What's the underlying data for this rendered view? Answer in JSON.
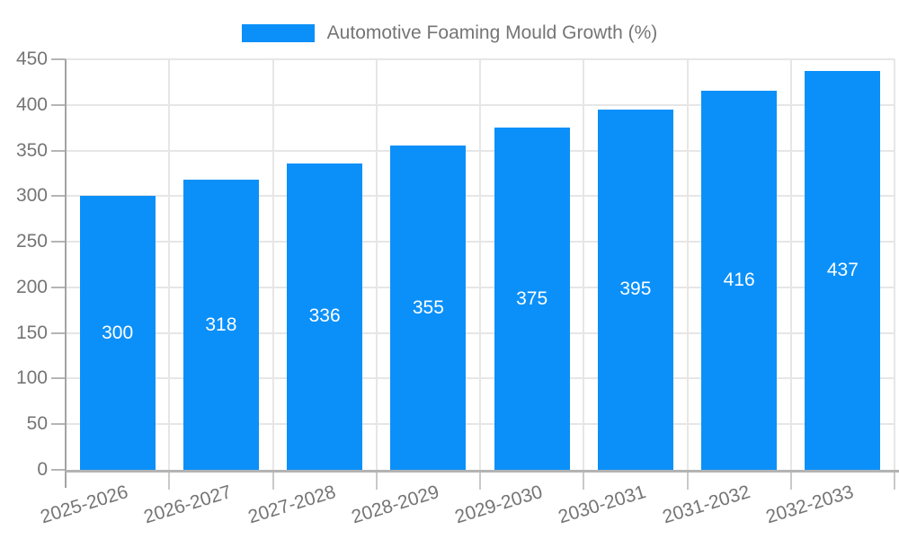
{
  "legend": {
    "label": "Automotive Foaming Mould Growth (%)"
  },
  "colors": {
    "bar": "#0b90f9",
    "grid": "#e6e6e6",
    "axis": "#a3a3a3",
    "tick_label": "#757575",
    "bar_label": "#ffffff",
    "background": "#ffffff"
  },
  "chart_data": {
    "type": "bar",
    "title": "Automotive Foaming Mould Growth (%)",
    "categories": [
      "2025-2026",
      "2026-2027",
      "2027-2028",
      "2028-2029",
      "2029-2030",
      "2030-2031",
      "2031-2032",
      "2032-2033"
    ],
    "values": [
      300,
      318,
      336,
      355,
      375,
      395,
      416,
      437
    ],
    "bar_value_labels": [
      "300",
      "318",
      "336",
      "355",
      "375",
      "395",
      "416",
      "437"
    ],
    "xlabel": "",
    "ylabel": "",
    "ylim": [
      0,
      450
    ],
    "yticks": [
      0,
      50,
      100,
      150,
      200,
      250,
      300,
      350,
      400,
      450
    ],
    "grid": true,
    "legend_position": "top-center",
    "bar_labels_inside": true,
    "x_label_rotation_deg": -17
  }
}
